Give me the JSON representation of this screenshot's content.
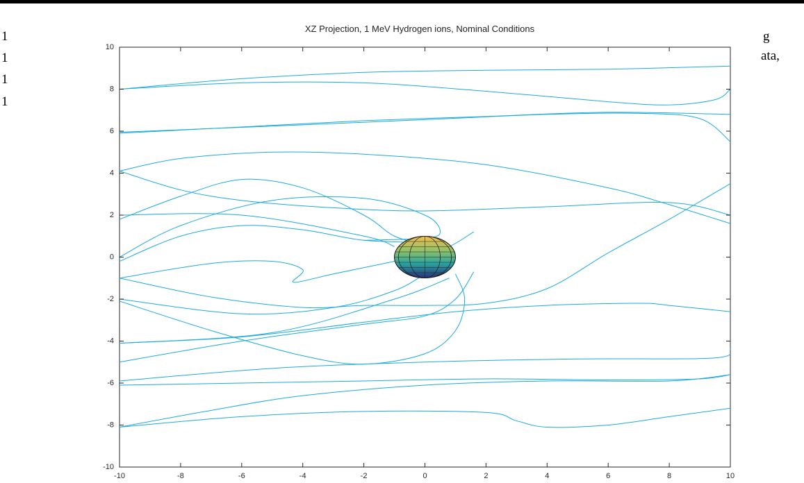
{
  "document_fragments": [
    "g",
    "ata,",
    "1",
    "1",
    "1",
    "1"
  ],
  "chart_data": {
    "type": "line",
    "title": "XZ Projection, 1 MeV Hydrogen ions, Nominal Conditions",
    "color": "#1aa9e0",
    "xlim": [
      -10,
      10
    ],
    "xticks": [
      -10,
      -8,
      -6,
      -4,
      -2,
      0,
      2,
      4,
      6,
      8,
      10
    ],
    "ylim": [
      -10,
      10
    ],
    "yticks": [
      -10,
      -8,
      -6,
      -4,
      -2,
      0,
      2,
      4,
      6,
      8,
      10
    ],
    "series": [
      {
        "x": [
          -10,
          -6,
          -2,
          2,
          6,
          10
        ],
        "values": [
          8.0,
          8.5,
          8.8,
          8.9,
          8.95,
          9.1
        ]
      },
      {
        "x": [
          -10,
          -6,
          -2,
          2,
          6,
          8,
          9.5,
          10
        ],
        "values": [
          8.0,
          8.3,
          8.3,
          7.9,
          7.4,
          7.25,
          7.5,
          8.0
        ]
      },
      {
        "x": [
          -10,
          -6,
          -2,
          2,
          6,
          10
        ],
        "values": [
          5.9,
          6.2,
          6.5,
          6.7,
          6.9,
          6.8
        ]
      },
      {
        "x": [
          -10,
          -4,
          0,
          4,
          7,
          9,
          10
        ],
        "values": [
          5.95,
          6.3,
          6.55,
          6.8,
          6.85,
          6.6,
          5.5
        ]
      },
      {
        "x": [
          -10,
          -8,
          -5,
          -2,
          2,
          6,
          8,
          10
        ],
        "values": [
          4.1,
          4.7,
          5.0,
          4.9,
          4.4,
          3.3,
          2.5,
          1.6
        ]
      },
      {
        "x": [
          -10,
          -8,
          -6,
          -3,
          0,
          4,
          8,
          10
        ],
        "values": [
          4.1,
          3.2,
          2.7,
          2.35,
          2.2,
          2.4,
          2.6,
          2.0
        ]
      },
      {
        "x": [
          -10,
          -8,
          -6,
          -4,
          -2,
          -1,
          0
        ],
        "values": [
          1.8,
          2.9,
          3.7,
          3.3,
          2.0,
          1.0,
          0.6
        ]
      },
      {
        "x": [
          -10,
          -6,
          -2,
          -1
        ],
        "values": [
          2.0,
          2.0,
          1.0,
          0.5
        ]
      },
      {
        "x": [
          -10,
          -8,
          -5,
          -2,
          0,
          0.5,
          0,
          -2
        ],
        "values": [
          0,
          1.5,
          2.7,
          2.8,
          2.0,
          1.2,
          0.9,
          0.8
        ]
      },
      {
        "x": [
          -10,
          -8,
          -6,
          -4,
          -2,
          0
        ],
        "values": [
          -0.2,
          1.0,
          1.5,
          1.3,
          0.8,
          0.7
        ]
      },
      {
        "x": [
          -10,
          -7,
          -5,
          -4,
          -4.3,
          -3,
          -1,
          0.5,
          1.6
        ],
        "values": [
          -1.0,
          -0.3,
          -0.2,
          -0.6,
          -1.2,
          -0.8,
          -0.2,
          0.3,
          1.2
        ]
      },
      {
        "x": [
          -10,
          -7,
          -4,
          -2,
          0,
          2,
          4,
          6,
          8,
          10
        ],
        "values": [
          -1.0,
          -1.9,
          -2.4,
          -2.3,
          -2.3,
          -2.2,
          -1.5,
          0.2,
          1.8,
          3.5
        ]
      },
      {
        "x": [
          -10,
          -6,
          -3,
          -1,
          0
        ],
        "values": [
          -2.0,
          -2.7,
          -2.4,
          -1.6,
          -0.8
        ]
      },
      {
        "x": [
          -10,
          -7,
          -4,
          -2,
          0,
          1,
          1.3,
          1
        ],
        "values": [
          -2.1,
          -3.5,
          -4.7,
          -5.1,
          -4.6,
          -3.5,
          -2.0,
          -0.8
        ]
      },
      {
        "x": [
          -10,
          -6,
          -2,
          1,
          4,
          7,
          8,
          10
        ],
        "values": [
          -4.1,
          -3.8,
          -3.1,
          -2.6,
          -2.3,
          -2.2,
          -2.3,
          -2.6
        ]
      },
      {
        "x": [
          -10,
          -5,
          -1,
          0.8
        ],
        "values": [
          -4.1,
          -3.6,
          -2.0,
          -1.0
        ]
      },
      {
        "x": [
          -10,
          -6,
          -2,
          0,
          1,
          1.6
        ],
        "values": [
          -5.0,
          -4.0,
          -3.2,
          -2.8,
          -2.0,
          -0.7
        ]
      },
      {
        "x": [
          -10,
          -5,
          0,
          5,
          9.5,
          10
        ],
        "values": [
          -5.9,
          -5.3,
          -5.0,
          -4.85,
          -4.8,
          -4.3
        ]
      },
      {
        "x": [
          -10,
          -6,
          -2,
          2,
          6,
          9,
          10
        ],
        "values": [
          -6.1,
          -6.0,
          -5.9,
          -5.8,
          -5.85,
          -5.8,
          -5.6
        ]
      },
      {
        "x": [
          -10,
          -7,
          -4,
          0,
          4,
          8,
          10
        ],
        "values": [
          -8.1,
          -7.3,
          -6.6,
          -6.1,
          -5.9,
          -5.9,
          -5.6
        ]
      },
      {
        "x": [
          -10,
          -6,
          -2,
          2,
          3,
          4,
          6,
          8,
          10
        ],
        "values": [
          -8.1,
          -7.6,
          -7.35,
          -7.4,
          -7.8,
          -8.1,
          -8.0,
          -7.6,
          -7.2
        ]
      }
    ]
  }
}
